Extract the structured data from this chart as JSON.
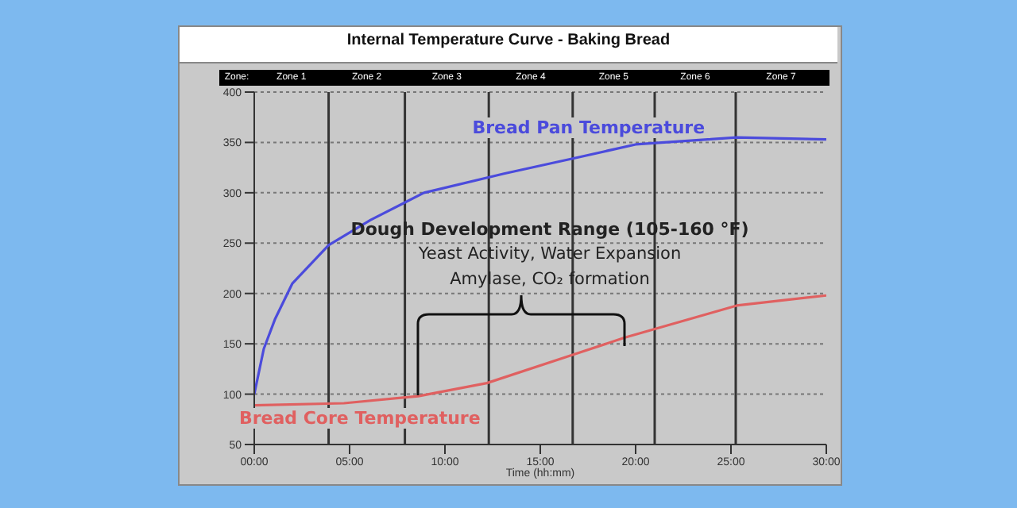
{
  "chart_data": {
    "type": "line",
    "title": "Internal Temperature Curve - Baking Bread",
    "xlabel": "Time (hh:mm)",
    "x": [
      0,
      0.5,
      1.1,
      2,
      3.9,
      6.1,
      8.9,
      13.1,
      16.7,
      20,
      25.3,
      30
    ],
    "series": [
      {
        "name": "Bread Core Temperature",
        "color": "#e06060",
        "x": [
          0,
          4.7,
          8.6,
          12.2,
          16.7,
          19.4,
          25.3,
          30
        ],
        "values": [
          89,
          91,
          98,
          111,
          139,
          156,
          188,
          198
        ]
      },
      {
        "name": "Bread Pan Temperature",
        "color": "#4b4bdc",
        "values": [
          100,
          145,
          175,
          210,
          248,
          273,
          300,
          319,
          334,
          348,
          355,
          353
        ]
      }
    ],
    "xlim": [
      0,
      30
    ],
    "xticks": [
      {
        "value": 0,
        "label": "00:00"
      },
      {
        "value": 5,
        "label": "05:00"
      },
      {
        "value": 10,
        "label": "10:00"
      },
      {
        "value": 15,
        "label": "15:00"
      },
      {
        "value": 20,
        "label": "20:00"
      },
      {
        "value": 25,
        "label": "25:00"
      },
      {
        "value": 30,
        "label": "30:00"
      }
    ],
    "ylim": [
      50,
      400
    ],
    "yticks": [
      50,
      100,
      150,
      200,
      250,
      300,
      350,
      400
    ],
    "grid": "y",
    "ref_lines": [
      {
        "axis": "x",
        "value": 3.9
      },
      {
        "axis": "x",
        "value": 7.9
      },
      {
        "axis": "x",
        "value": 12.3
      },
      {
        "axis": "x",
        "value": 16.7
      },
      {
        "axis": "x",
        "value": 21
      },
      {
        "axis": "x",
        "value": 25.25
      }
    ],
    "annotations": [
      "Zone:",
      "Zone 1",
      "Zone 2",
      "Zone 3",
      "Zone 4",
      "Zone 5",
      "Zone 6",
      "Zone 7",
      "Dough Development Range (105-160 °F)",
      "Yeast Activity, Water Expansion",
      "Amylase, CO₂ formation"
    ]
  }
}
